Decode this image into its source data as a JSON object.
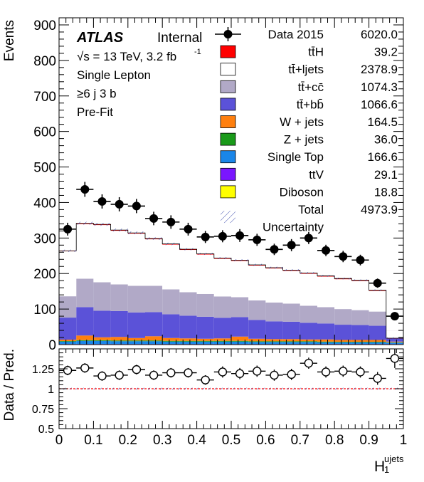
{
  "chart_data": {
    "type": "bar",
    "title": "",
    "xlabel": "H",
    "xlabel_sub": "1",
    "xlabel_sup": "ujets",
    "ylabel": "Events",
    "ratio_ylabel": "Data / Pred.",
    "xlim": [
      0,
      1
    ],
    "ylim": [
      0,
      920
    ],
    "ratio_ylim": [
      0.5,
      1.5
    ],
    "x_ticks": [
      "0",
      "0.1",
      "0.2",
      "0.3",
      "0.4",
      "0.5",
      "0.6",
      "0.7",
      "0.8",
      "0.9",
      "1"
    ],
    "y_ticks": [
      "0",
      "100",
      "200",
      "300",
      "400",
      "500",
      "600",
      "700",
      "800",
      "900"
    ],
    "ratio_ticks": [
      "0.5",
      "0.75",
      "1",
      "1.25"
    ],
    "bin_edges": [
      0,
      0.05,
      0.1,
      0.15,
      0.2,
      0.25,
      0.3,
      0.35,
      0.4,
      0.45,
      0.5,
      0.55,
      0.6,
      0.65,
      0.7,
      0.75,
      0.8,
      0.85,
      0.9,
      0.95,
      1.0
    ],
    "annotations": {
      "experiment": "ATLAS",
      "status": "Internal",
      "energy_line": "√s = 13 TeV, 3.2 fb",
      "energy_sup": "-1",
      "channel": "Single Lepton",
      "region": "≥6 j 3 b",
      "fit": "Pre-Fit"
    },
    "legend": [
      {
        "label": "Data 2015",
        "yield": "6020.0",
        "kind": "data",
        "color": "#000000"
      },
      {
        "label": "tt̄H",
        "yield": "39.2",
        "kind": "fill",
        "color": "#ff0000"
      },
      {
        "label": "tt̄+ljets",
        "yield": "2378.9",
        "kind": "fill",
        "color": "#ffffff"
      },
      {
        "label": "tt̄+cc̄",
        "yield": "1074.3",
        "kind": "fill",
        "color": "#b1a9c7"
      },
      {
        "label": "tt̄+bb̄",
        "yield": "1066.6",
        "kind": "fill",
        "color": "#5b52d8"
      },
      {
        "label": "W + jets",
        "yield": "164.5",
        "kind": "fill",
        "color": "#ff7f0e"
      },
      {
        "label": "Z + jets",
        "yield": "36.0",
        "kind": "fill",
        "color": "#1a9a1a"
      },
      {
        "label": "Single Top",
        "yield": "166.6",
        "kind": "fill",
        "color": "#1a86e8"
      },
      {
        "label": "ttV",
        "yield": "29.1",
        "kind": "fill",
        "color": "#7a16ff"
      },
      {
        "label": "Diboson",
        "yield": "18.8",
        "kind": "fill",
        "color": "#ffff00"
      },
      {
        "label": "Total",
        "yield": "4973.9",
        "kind": "none",
        "color": ""
      },
      {
        "label": "Uncertainty",
        "yield": "",
        "kind": "hatch",
        "color": "#3344aa"
      }
    ],
    "series": [
      {
        "name": "Diboson",
        "color": "#ffff00",
        "values": [
          0.5,
          0.5,
          0.5,
          0.5,
          0.5,
          0.5,
          0.5,
          0.5,
          0.5,
          0.5,
          0.5,
          0.5,
          0.5,
          0.5,
          0.5,
          0.5,
          0.5,
          0.5,
          0.5,
          0.5
        ]
      },
      {
        "name": "ttV",
        "color": "#7a16ff",
        "values": [
          1,
          1,
          1,
          1,
          1,
          1,
          1,
          1,
          1,
          1,
          1,
          1,
          1,
          1,
          1,
          1,
          1,
          1,
          1,
          1
        ]
      },
      {
        "name": "Single Top",
        "color": "#1a86e8",
        "values": [
          7,
          9,
          9,
          8,
          8,
          8,
          7,
          7,
          7,
          7,
          7,
          6,
          6,
          6,
          6,
          5,
          5,
          5,
          5,
          4
        ]
      },
      {
        "name": "Z + jets",
        "color": "#1a9a1a",
        "values": [
          1.5,
          2,
          2,
          2,
          2,
          2,
          2,
          2,
          2,
          2,
          2,
          2,
          2,
          2,
          2,
          2,
          1.5,
          1.5,
          1.5,
          1
        ]
      },
      {
        "name": "W + jets",
        "color": "#ff7f0e",
        "values": [
          4,
          13,
          8,
          10,
          7,
          12,
          8,
          7,
          6,
          7,
          12,
          7,
          6,
          6,
          5,
          6,
          5,
          5,
          5,
          2
        ]
      },
      {
        "name": "tt̄+bb̄",
        "color": "#5b52d8",
        "values": [
          62,
          80,
          75,
          73,
          72,
          68,
          67,
          64,
          62,
          58,
          55,
          53,
          50,
          49,
          47,
          45,
          43,
          42,
          40,
          20
        ]
      },
      {
        "name": "tt̄+cc̄",
        "color": "#b1a9c7",
        "values": [
          60,
          80,
          80,
          75,
          75,
          74,
          70,
          66,
          64,
          60,
          56,
          55,
          53,
          51,
          48,
          46,
          44,
          42,
          40,
          10
        ]
      },
      {
        "name": "tt̄+ljets",
        "color": "#ffffff",
        "values": [
          127,
          154,
          161,
          151,
          147,
          131,
          126,
          119,
          111,
          106,
          102,
          98,
          96,
          92,
          90,
          86,
          84,
          82,
          58,
          -21.5
        ]
      },
      {
        "name": "tt̄H",
        "color": "#ff0000",
        "values": [
          1,
          2,
          2,
          2,
          2,
          2,
          2,
          2,
          2,
          2,
          2,
          2,
          2,
          2,
          2,
          2,
          2,
          2,
          2,
          1
        ]
      }
    ],
    "data_points": {
      "x": [
        0.025,
        0.075,
        0.125,
        0.175,
        0.225,
        0.275,
        0.325,
        0.375,
        0.425,
        0.475,
        0.525,
        0.575,
        0.625,
        0.675,
        0.725,
        0.775,
        0.825,
        0.875,
        0.925,
        0.975
      ],
      "y": [
        325,
        437,
        403,
        395,
        390,
        355,
        345,
        325,
        303,
        305,
        307,
        295,
        268,
        280,
        300,
        265,
        248,
        238,
        173,
        80
      ],
      "yerr": [
        18,
        21,
        20,
        20,
        20,
        19,
        19,
        18,
        17,
        17,
        18,
        17,
        16,
        17,
        17,
        16,
        16,
        15,
        13,
        9
      ]
    },
    "ratio_points": {
      "y": [
        1.23,
        1.26,
        1.16,
        1.17,
        1.24,
        1.17,
        1.2,
        1.2,
        1.11,
        1.21,
        1.19,
        1.22,
        1.17,
        1.18,
        1.32,
        1.21,
        1.22,
        1.21,
        1.13,
        1.38
      ],
      "yerr": [
        0.06,
        0.06,
        0.06,
        0.06,
        0.06,
        0.06,
        0.06,
        0.06,
        0.06,
        0.07,
        0.07,
        0.07,
        0.07,
        0.07,
        0.07,
        0.07,
        0.07,
        0.07,
        0.08,
        0.12
      ]
    }
  }
}
